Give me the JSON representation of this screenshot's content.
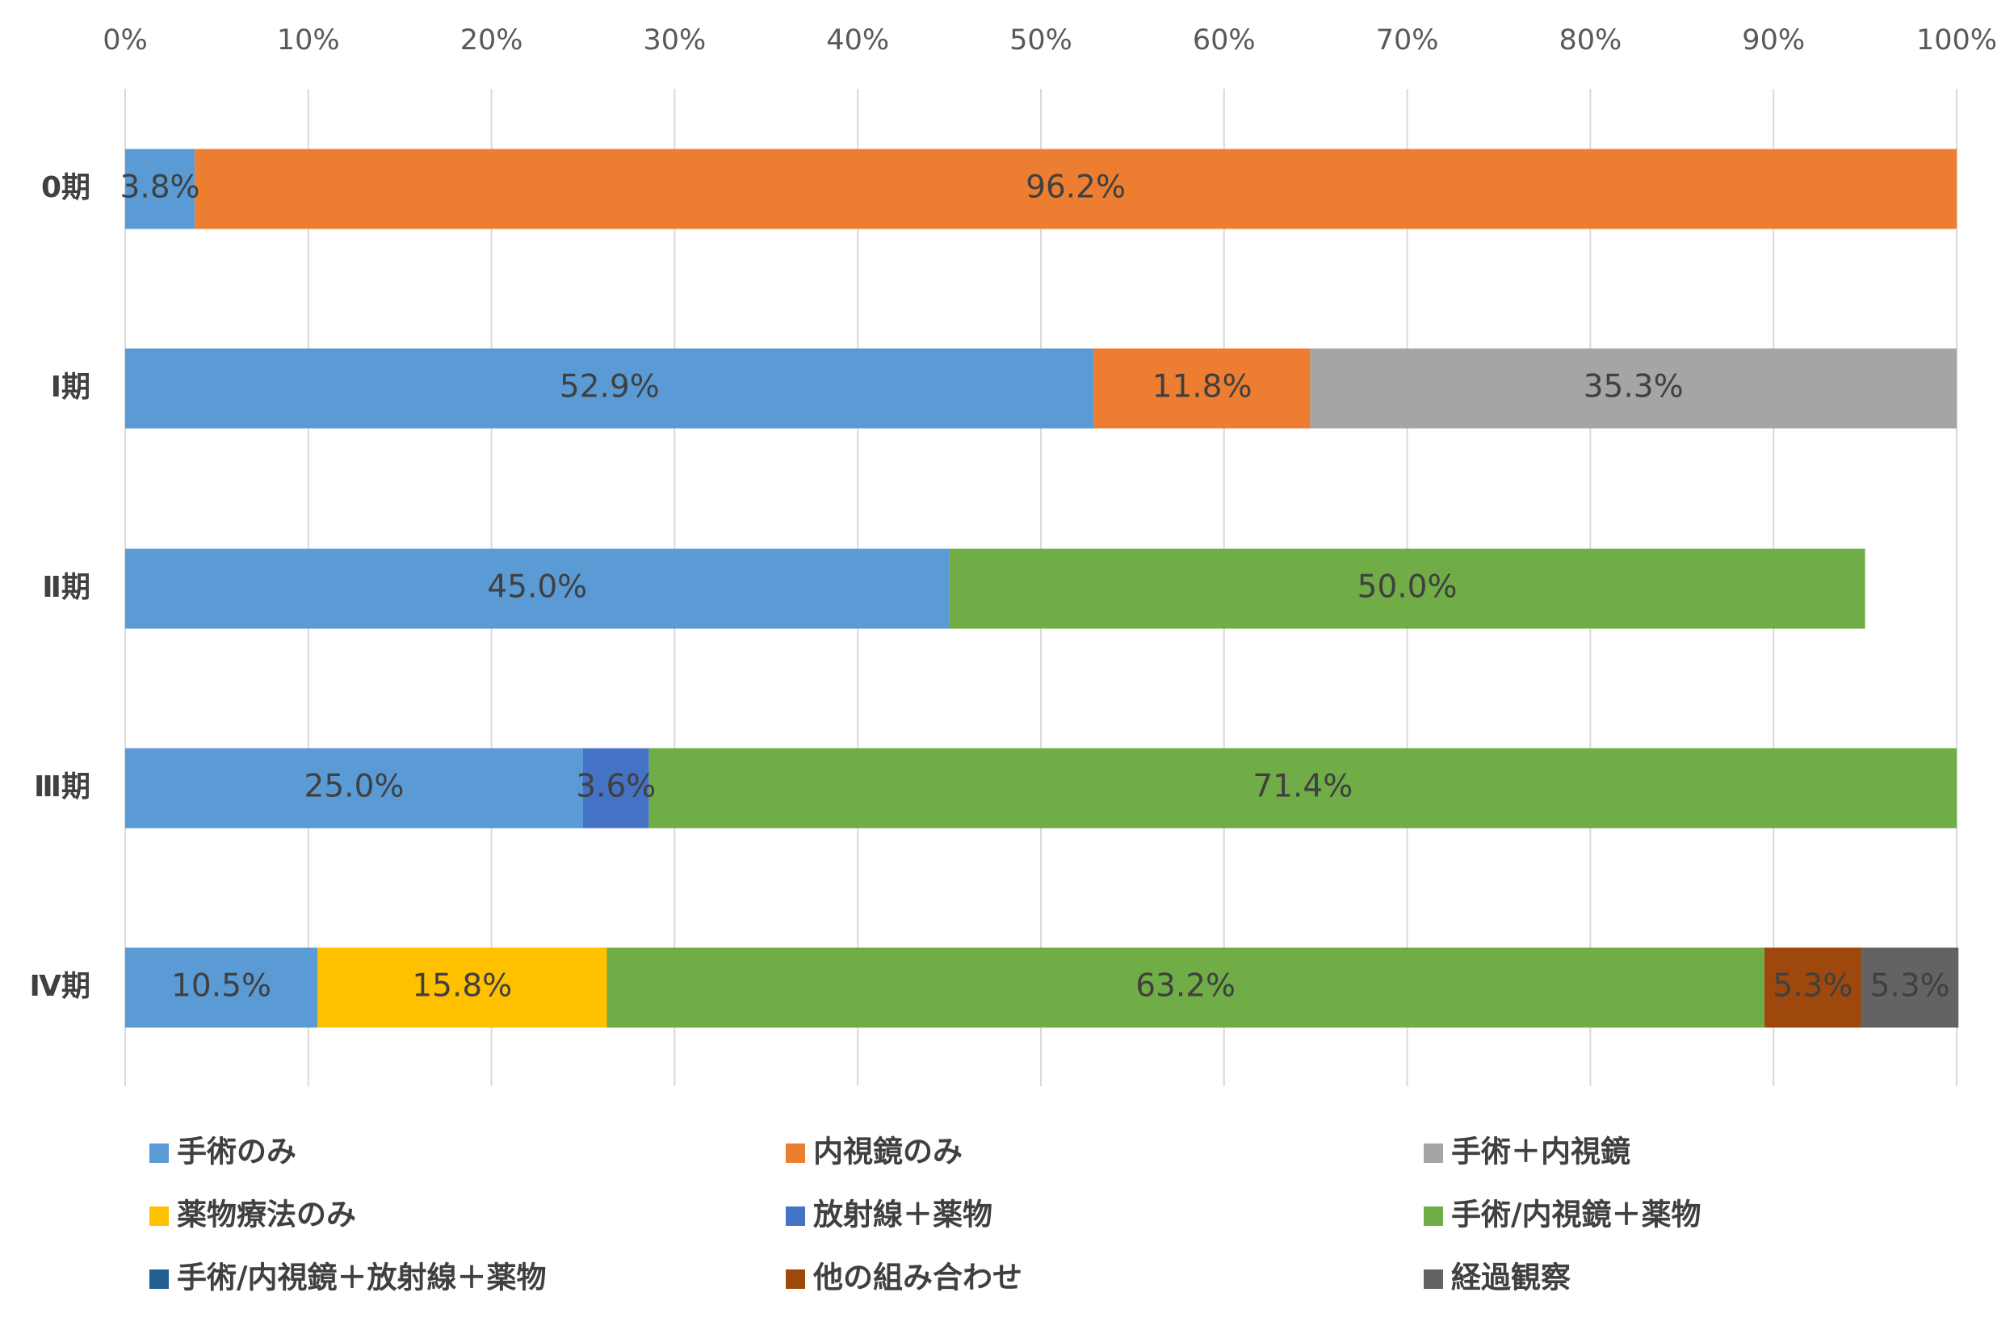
{
  "chart_data": {
    "type": "bar",
    "orientation": "horizontal",
    "stacked": "percent",
    "title": "",
    "xlabel": "",
    "ylabel": "",
    "xlim": [
      0,
      100
    ],
    "x_ticks": [
      "0%",
      "10%",
      "20%",
      "30%",
      "40%",
      "50%",
      "60%",
      "70%",
      "80%",
      "90%",
      "100%"
    ],
    "grid": "vertical",
    "legend_position": "bottom",
    "categories": [
      "0期",
      "Ⅰ期",
      "Ⅱ期",
      "Ⅲ期",
      "Ⅳ期"
    ],
    "series": [
      {
        "name": "手術のみ",
        "color": "#5B9BD5",
        "values": [
          3.8,
          52.9,
          45.0,
          25.0,
          10.5
        ]
      },
      {
        "name": "内視鏡のみ",
        "color": "#ED7D31",
        "values": [
          96.2,
          11.8,
          0,
          0,
          0
        ]
      },
      {
        "name": "手術＋内視鏡",
        "color": "#A5A5A5",
        "values": [
          0,
          35.3,
          0,
          0,
          0
        ]
      },
      {
        "name": "薬物療法のみ",
        "color": "#FFC000",
        "values": [
          0,
          0,
          0,
          0,
          15.8
        ]
      },
      {
        "name": "放射線＋薬物",
        "color": "#4472C4",
        "values": [
          0,
          0,
          0,
          3.6,
          0
        ]
      },
      {
        "name": "手術/内視鏡＋薬物",
        "color": "#70AD47",
        "values": [
          0,
          0,
          50.0,
          71.4,
          63.2
        ]
      },
      {
        "name": "手術/内視鏡＋放射線＋薬物",
        "color": "#255E91",
        "values": [
          0,
          0,
          0,
          0,
          0
        ]
      },
      {
        "name": "他の組み合わせ",
        "color": "#9E480E",
        "values": [
          0,
          0,
          0,
          0,
          5.3
        ]
      },
      {
        "name": "経過観察",
        "color": "#636363",
        "values": [
          0,
          0,
          0,
          0,
          5.3
        ]
      }
    ],
    "data_labels": [
      [
        "3.8%",
        "96.2%",
        "",
        "",
        "",
        "",
        "",
        "",
        ""
      ],
      [
        "52.9%",
        "11.8%",
        "35.3%",
        "",
        "",
        "",
        "",
        "",
        ""
      ],
      [
        "45.0%",
        "",
        "",
        "",
        "",
        "50.0%",
        "",
        "",
        ""
      ],
      [
        "25.0%",
        "",
        "",
        "",
        "3.6%",
        "71.4%",
        "",
        "",
        ""
      ],
      [
        "10.5%",
        "",
        "",
        "15.8%",
        "",
        "63.2%",
        "",
        "5.3%",
        "5.3%"
      ]
    ]
  }
}
